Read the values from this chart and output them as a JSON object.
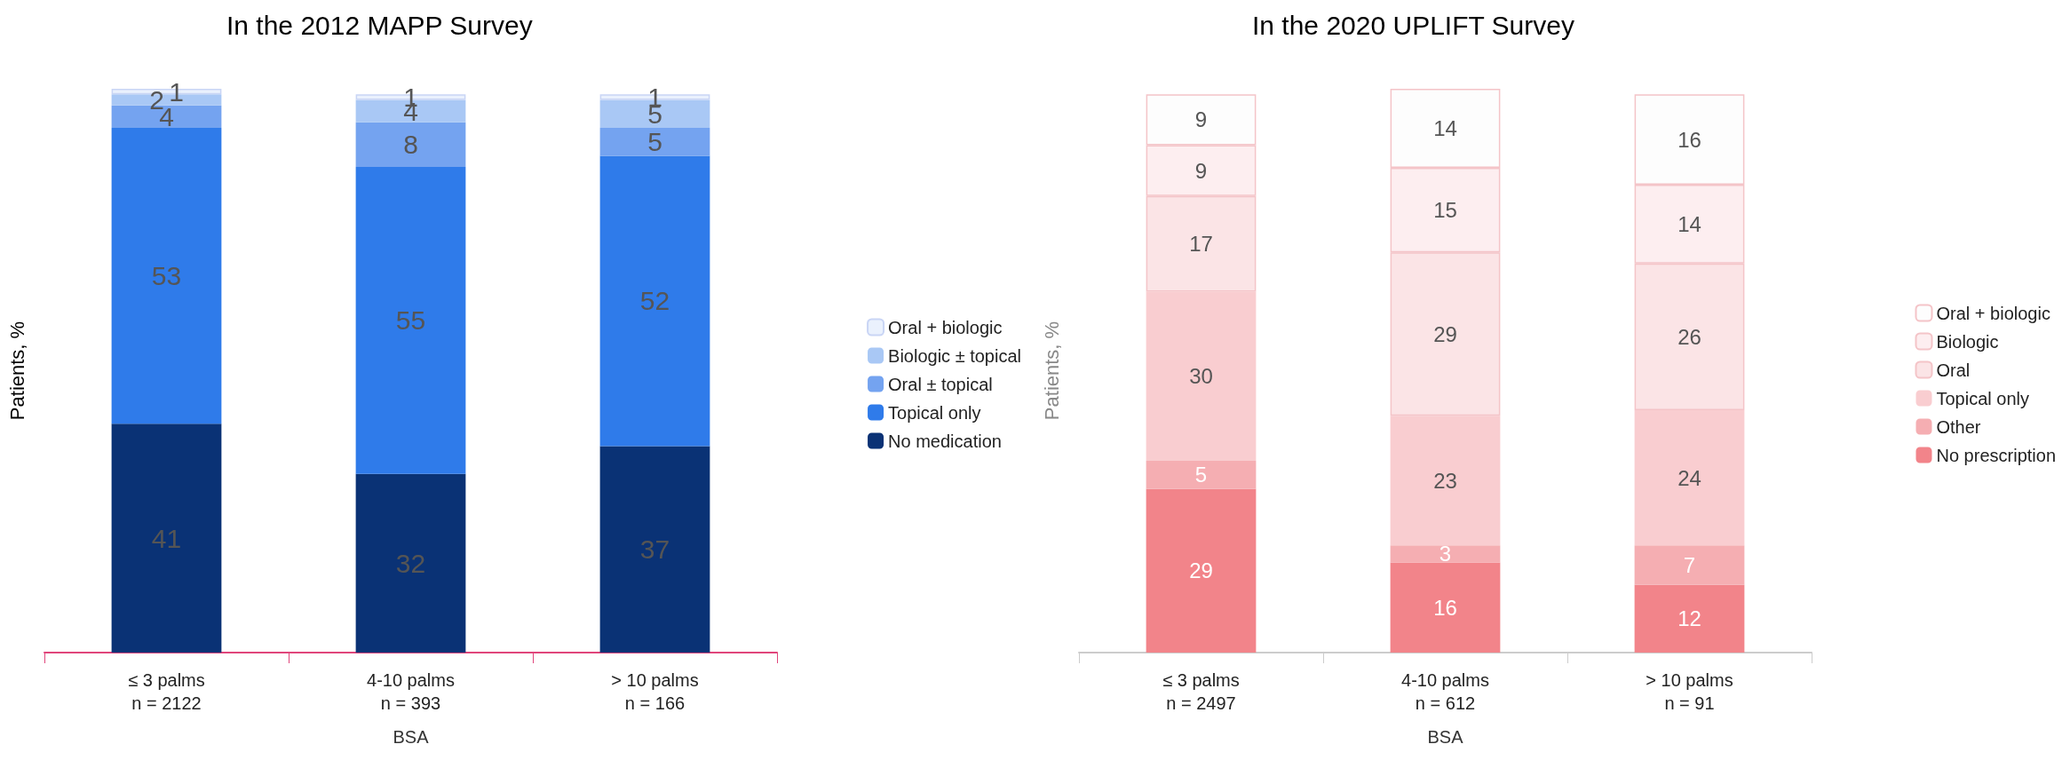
{
  "chart_data": [
    {
      "type": "bar",
      "title": "In the 2012 MAPP Survey",
      "xlabel": "BSA",
      "ylabel": "Patients, %",
      "categories": [
        "≤ 3 palms\nn = 2122",
        "4-10 palms\nn = 393",
        "> 10 palms\nn = 166"
      ],
      "stacked": true,
      "data_labels": true,
      "legend": "right",
      "grid": false,
      "series": [
        {
          "name": "No medication",
          "color": "#0a3275",
          "values": [
            41,
            32,
            37
          ]
        },
        {
          "name": "Topical only",
          "color": "#2f7bea",
          "values": [
            53,
            55,
            52
          ]
        },
        {
          "name": "Oral ± topical",
          "color": "#74a3f0",
          "values": [
            4,
            8,
            5
          ]
        },
        {
          "name": "Biologic ± topical",
          "color": "#a9c8f5",
          "values": [
            2,
            4,
            5
          ]
        },
        {
          "name": "Oral + biologic",
          "color": "#eaf1fd",
          "values": [
            1,
            1,
            1
          ]
        }
      ]
    },
    {
      "type": "bar",
      "title": "In the 2020 UPLIFT Survey",
      "xlabel": "BSA",
      "ylabel": "Patients, %",
      "categories": [
        "≤ 3 palms\nn = 2497",
        "4-10 palms\nn = 612",
        "> 10 palms\nn = 91"
      ],
      "stacked": true,
      "data_labels": true,
      "legend": "right",
      "grid": false,
      "series": [
        {
          "name": "No prescription",
          "color": "#f2848a",
          "values": [
            29,
            16,
            12
          ]
        },
        {
          "name": "Other",
          "color": "#f5aeb2",
          "values": [
            5,
            3,
            7
          ]
        },
        {
          "name": "Topical only",
          "color": "#f9cdd0",
          "values": [
            30,
            23,
            24
          ]
        },
        {
          "name": "Oral",
          "color": "#fbe4e6",
          "values": [
            17,
            29,
            26
          ]
        },
        {
          "name": "Biologic",
          "color": "#fdeef0",
          "values": [
            9,
            15,
            14
          ]
        },
        {
          "name": "Oral + biologic",
          "color": "#fdfdfd",
          "values": [
            9,
            14,
            16
          ]
        }
      ]
    }
  ]
}
